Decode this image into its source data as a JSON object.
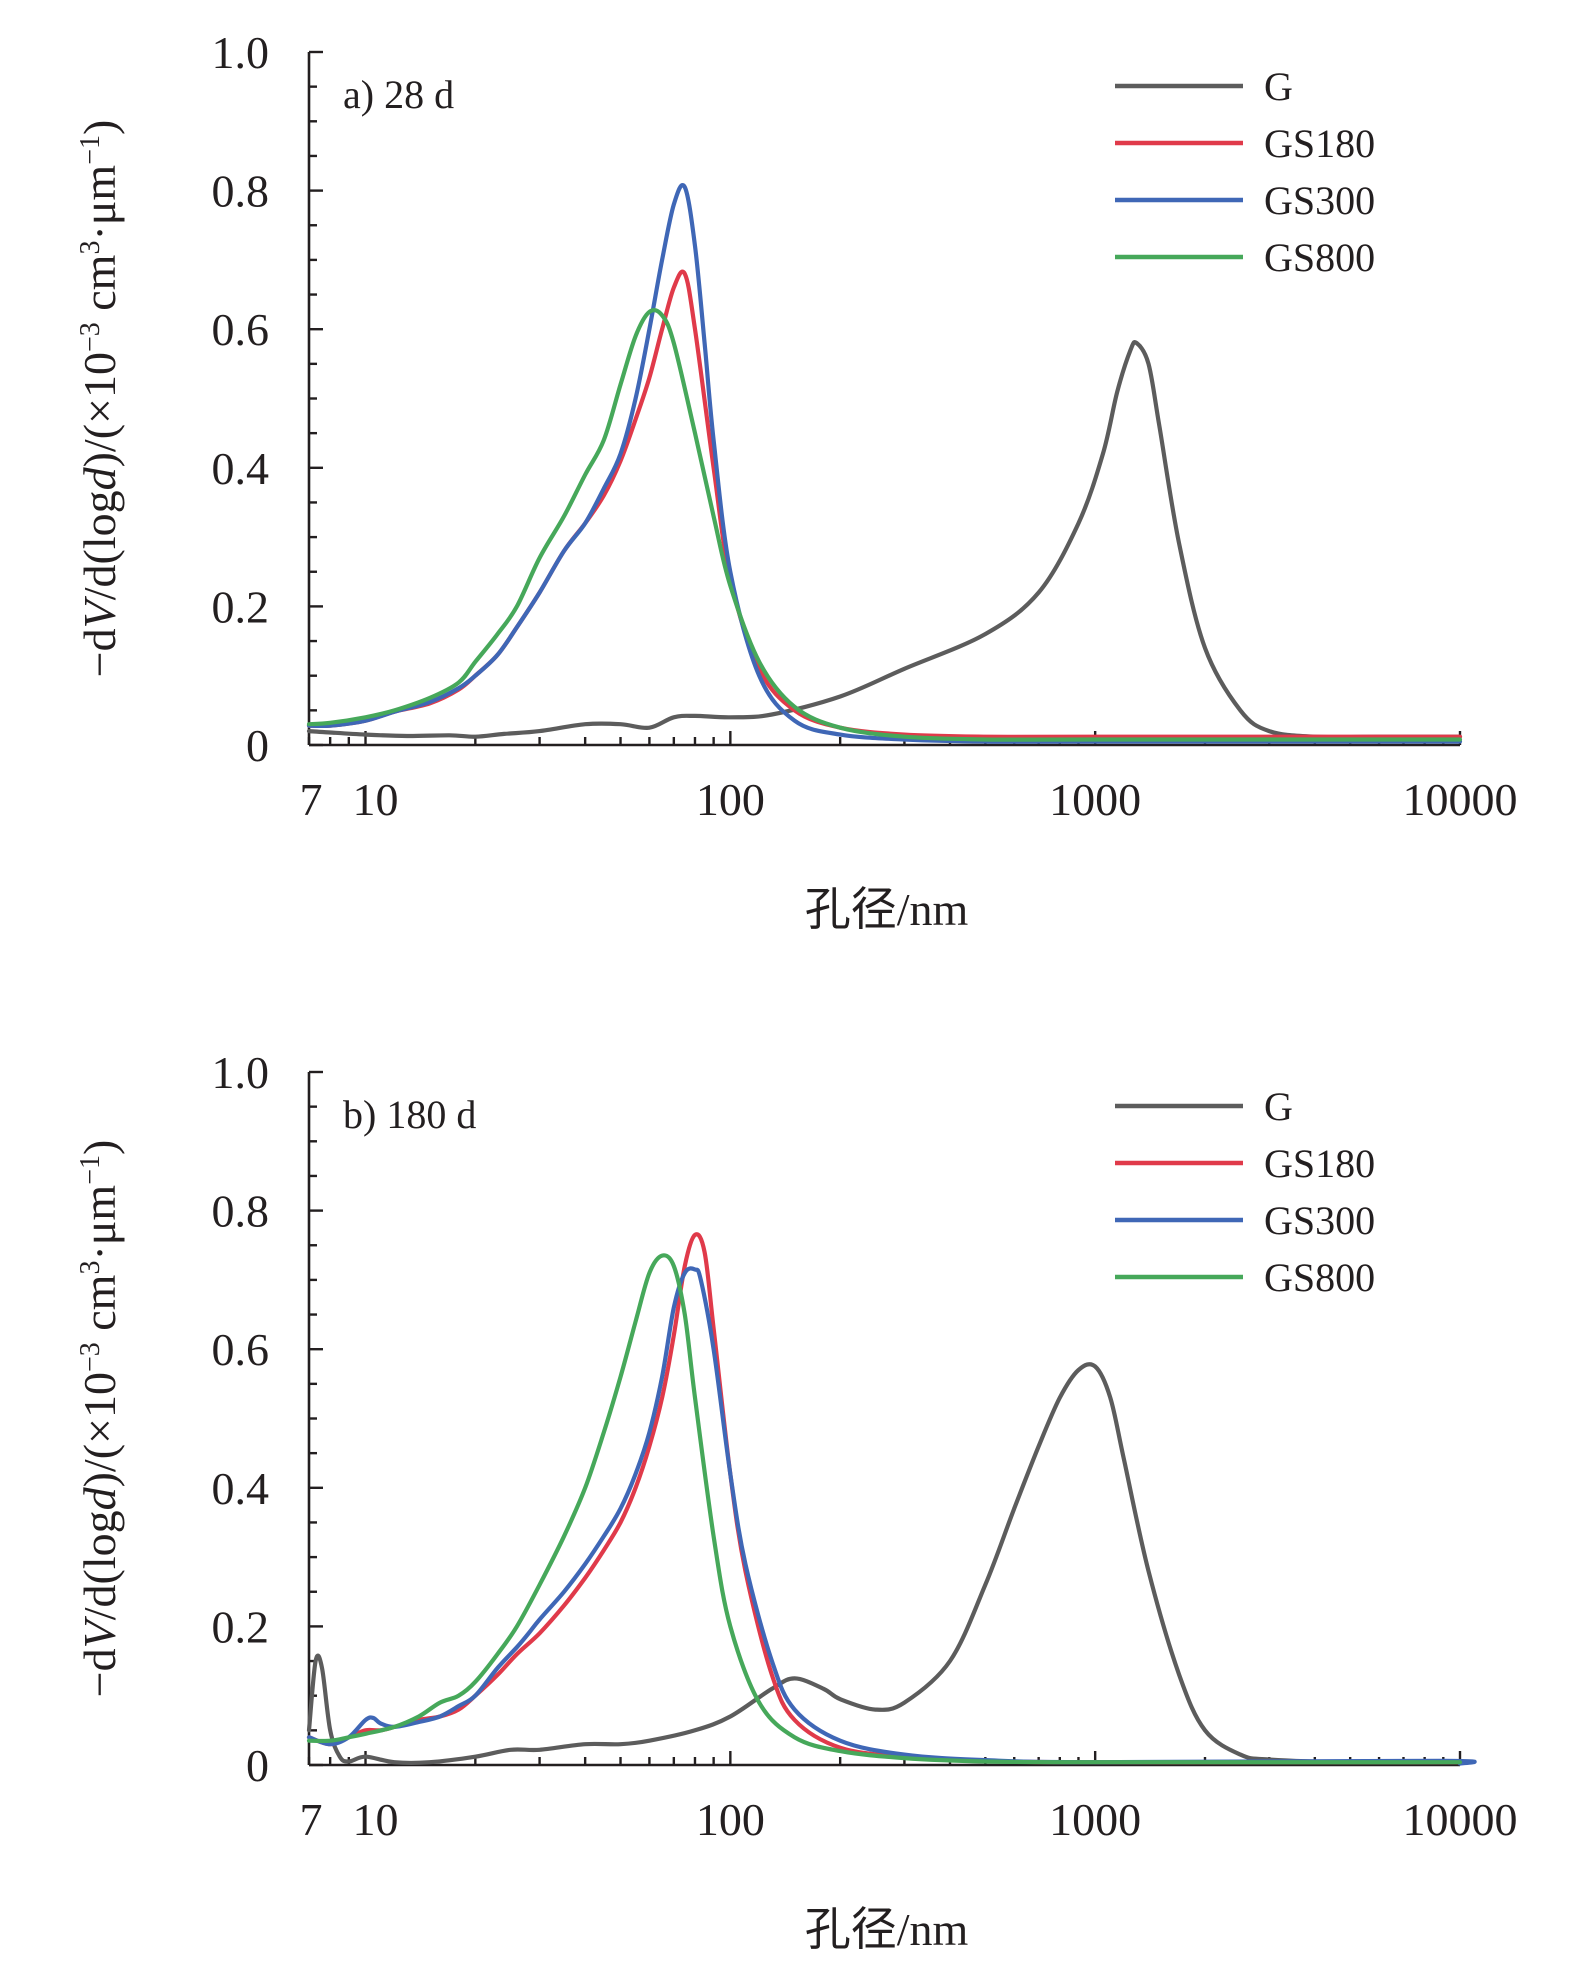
{
  "chart_data": [
    {
      "type": "line",
      "panel_label": "a) 28 d",
      "xlabel": "孔径/nm",
      "ylabel": "−dV/d(logd)/(×10⁻³ cm³·μm⁻¹)",
      "ylabel_parts": {
        "pre": "−d",
        "V": "V",
        "mid": "/d(log",
        "d": "d",
        "post": ")/(×10",
        "exp1": "−3",
        "unit1": " cm",
        "exp2": "3",
        "unit2": "·μm",
        "exp3": "−1",
        "close": ")"
      },
      "x_scale": "log",
      "xlim": [
        7,
        10000
      ],
      "ylim": [
        0,
        1.0
      ],
      "x_ticks": [
        7,
        10,
        100,
        1000,
        10000
      ],
      "x_tick_labels": [
        "7",
        "10",
        "100",
        "1000",
        "10000"
      ],
      "y_ticks": [
        0,
        0.2,
        0.4,
        0.6,
        0.8,
        1.0
      ],
      "y_tick_labels": [
        "0",
        "0.2",
        "0.4",
        "0.6",
        "0.8",
        "1.0"
      ],
      "grid": false,
      "legend_position": "top-right",
      "series": [
        {
          "name": "G",
          "color": "#5c5c5c",
          "x": [
            7,
            8,
            10,
            13,
            17,
            20,
            24,
            30,
            40,
            50,
            60,
            70,
            80,
            100,
            130,
            200,
            300,
            500,
            700,
            900,
            1050,
            1150,
            1250,
            1300,
            1400,
            1500,
            1700,
            2000,
            2500,
            3000,
            4000,
            6000,
            10000
          ],
          "y": [
            0.02,
            0.018,
            0.015,
            0.013,
            0.014,
            0.012,
            0.016,
            0.02,
            0.03,
            0.03,
            0.025,
            0.04,
            0.042,
            0.04,
            0.044,
            0.07,
            0.11,
            0.16,
            0.22,
            0.32,
            0.42,
            0.51,
            0.57,
            0.58,
            0.55,
            0.46,
            0.29,
            0.14,
            0.05,
            0.02,
            0.012,
            0.012,
            0.012
          ]
        },
        {
          "name": "GS180",
          "color": "#e03a4a",
          "x": [
            7,
            8,
            10,
            12,
            15,
            18,
            20,
            23,
            26,
            30,
            35,
            40,
            45,
            50,
            55,
            60,
            65,
            70,
            75,
            80,
            90,
            100,
            120,
            150,
            200,
            300,
            500,
            1000,
            10000
          ],
          "y": [
            0.028,
            0.028,
            0.035,
            0.048,
            0.06,
            0.08,
            0.1,
            0.13,
            0.17,
            0.22,
            0.28,
            0.32,
            0.36,
            0.41,
            0.47,
            0.53,
            0.6,
            0.66,
            0.68,
            0.6,
            0.4,
            0.24,
            0.11,
            0.05,
            0.025,
            0.015,
            0.012,
            0.012,
            0.012
          ]
        },
        {
          "name": "GS300",
          "color": "#3f67b6",
          "x": [
            7,
            8,
            10,
            12,
            15,
            18,
            20,
            23,
            26,
            30,
            35,
            40,
            45,
            50,
            55,
            60,
            65,
            70,
            75,
            80,
            85,
            90,
            100,
            120,
            150,
            200,
            300,
            500,
            1000,
            10000
          ],
          "y": [
            0.028,
            0.028,
            0.035,
            0.048,
            0.062,
            0.082,
            0.1,
            0.13,
            0.17,
            0.22,
            0.28,
            0.32,
            0.37,
            0.42,
            0.5,
            0.6,
            0.7,
            0.78,
            0.805,
            0.72,
            0.58,
            0.44,
            0.25,
            0.1,
            0.035,
            0.015,
            0.008,
            0.005,
            0.005,
            0.005
          ]
        },
        {
          "name": "GS800",
          "color": "#46a85a",
          "x": [
            7,
            8,
            10,
            12,
            15,
            18,
            20,
            23,
            26,
            30,
            35,
            40,
            45,
            50,
            55,
            60,
            65,
            70,
            80,
            90,
            100,
            120,
            150,
            200,
            300,
            500,
            1000,
            10000
          ],
          "y": [
            0.03,
            0.032,
            0.04,
            0.05,
            0.068,
            0.09,
            0.12,
            0.16,
            0.2,
            0.27,
            0.33,
            0.39,
            0.44,
            0.52,
            0.59,
            0.625,
            0.62,
            0.58,
            0.45,
            0.33,
            0.23,
            0.12,
            0.055,
            0.025,
            0.012,
            0.008,
            0.008,
            0.008
          ]
        }
      ]
    },
    {
      "type": "line",
      "panel_label": "b) 180 d",
      "xlabel": "孔径/nm",
      "ylabel": "−dV/d(logd)/(×10⁻³ cm³·μm⁻¹)",
      "ylabel_parts": {
        "pre": "−d",
        "V": "V",
        "mid": "/d(log",
        "d": "d",
        "post": ")/(×10",
        "exp1": "−3",
        "unit1": " cm",
        "exp2": "3",
        "unit2": "·μm",
        "exp3": "−1",
        "close": ")"
      },
      "x_scale": "log",
      "xlim": [
        7,
        10000
      ],
      "ylim": [
        0,
        1.0
      ],
      "x_ticks": [
        7,
        10,
        100,
        1000,
        10000
      ],
      "x_tick_labels": [
        "7",
        "10",
        "100",
        "1000",
        "10000"
      ],
      "y_ticks": [
        0,
        0.2,
        0.4,
        0.6,
        0.8,
        1.0
      ],
      "y_tick_labels": [
        "0",
        "0.2",
        "0.4",
        "0.6",
        "0.8",
        "1.0"
      ],
      "grid": false,
      "legend_position": "top-right",
      "series": [
        {
          "name": "G",
          "color": "#5c5c5c",
          "x": [
            7,
            7.3,
            7.6,
            8.0,
            8.5,
            9,
            10,
            12,
            15,
            20,
            25,
            30,
            40,
            50,
            60,
            80,
            100,
            130,
            150,
            180,
            200,
            250,
            300,
            400,
            500,
            600,
            700,
            800,
            900,
            1000,
            1100,
            1200,
            1400,
            1700,
            2000,
            2500,
            3000,
            5000,
            10000
          ],
          "y": [
            0.05,
            0.15,
            0.14,
            0.05,
            0.012,
            0.005,
            0.012,
            0.004,
            0.004,
            0.012,
            0.022,
            0.022,
            0.03,
            0.03,
            0.035,
            0.05,
            0.07,
            0.11,
            0.125,
            0.11,
            0.095,
            0.08,
            0.09,
            0.15,
            0.26,
            0.37,
            0.46,
            0.53,
            0.57,
            0.575,
            0.53,
            0.44,
            0.28,
            0.13,
            0.05,
            0.015,
            0.008,
            0.004,
            0.004
          ]
        },
        {
          "name": "GS180",
          "color": "#e03a4a",
          "x": [
            7,
            8,
            9,
            10,
            11,
            12,
            14,
            16,
            18,
            20,
            23,
            26,
            30,
            35,
            40,
            45,
            50,
            55,
            60,
            65,
            70,
            75,
            80,
            85,
            90,
            100,
            110,
            130,
            150,
            200,
            300,
            500,
            1000,
            10000
          ],
          "y": [
            0.04,
            0.03,
            0.04,
            0.05,
            0.05,
            0.055,
            0.065,
            0.07,
            0.08,
            0.1,
            0.13,
            0.16,
            0.19,
            0.23,
            0.27,
            0.31,
            0.35,
            0.4,
            0.46,
            0.53,
            0.62,
            0.72,
            0.765,
            0.74,
            0.63,
            0.42,
            0.28,
            0.13,
            0.065,
            0.025,
            0.012,
            0.006,
            0.004,
            0.004
          ]
        },
        {
          "name": "GS300",
          "color": "#3f67b6",
          "x": [
            7,
            8,
            9,
            10,
            10.5,
            11,
            12,
            14,
            16,
            18,
            20,
            23,
            26,
            28,
            30,
            35,
            40,
            45,
            50,
            55,
            60,
            65,
            70,
            75,
            80,
            83,
            90,
            100,
            110,
            130,
            150,
            200,
            300,
            500,
            1000,
            9000,
            10000
          ],
          "y": [
            0.04,
            0.03,
            0.04,
            0.065,
            0.068,
            0.06,
            0.055,
            0.062,
            0.07,
            0.085,
            0.1,
            0.14,
            0.17,
            0.19,
            0.21,
            0.25,
            0.29,
            0.33,
            0.37,
            0.42,
            0.48,
            0.56,
            0.66,
            0.71,
            0.715,
            0.7,
            0.6,
            0.42,
            0.29,
            0.15,
            0.08,
            0.035,
            0.015,
            0.007,
            0.004,
            0.006,
            0.002
          ]
        },
        {
          "name": "GS800",
          "color": "#46a85a",
          "x": [
            7,
            8,
            9,
            10,
            12,
            14,
            16,
            18,
            20,
            23,
            26,
            30,
            35,
            40,
            45,
            50,
            55,
            60,
            65,
            70,
            75,
            80,
            90,
            100,
            120,
            150,
            200,
            300,
            500,
            1000,
            10000
          ],
          "y": [
            0.035,
            0.035,
            0.04,
            0.045,
            0.055,
            0.07,
            0.09,
            0.1,
            0.12,
            0.16,
            0.2,
            0.26,
            0.33,
            0.4,
            0.48,
            0.56,
            0.64,
            0.71,
            0.735,
            0.72,
            0.65,
            0.53,
            0.33,
            0.2,
            0.09,
            0.04,
            0.02,
            0.01,
            0.005,
            0.004,
            0.004
          ]
        }
      ]
    }
  ]
}
